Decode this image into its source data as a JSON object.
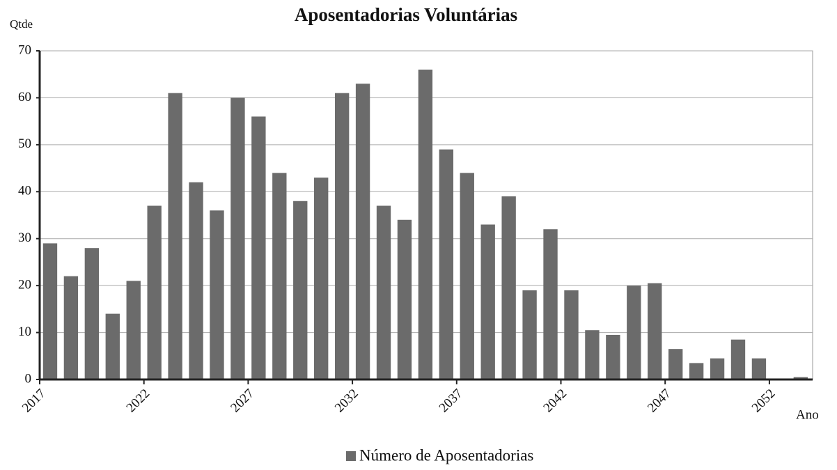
{
  "chart_data": {
    "type": "bar",
    "title": "Aposentadorias Voluntárias",
    "y_label": "Qtde",
    "x_label": "Ano",
    "categories": [
      "2017",
      null,
      null,
      null,
      null,
      "2022",
      null,
      null,
      null,
      null,
      "2027",
      null,
      null,
      null,
      null,
      "2032",
      null,
      null,
      null,
      null,
      "2037",
      null,
      null,
      null,
      null,
      "2042",
      null,
      null,
      null,
      null,
      "2047",
      null,
      null,
      null,
      null,
      "2052",
      null
    ],
    "series": [
      {
        "name": "Número de Aposentadorias",
        "color": "#6b6b6b",
        "values": [
          29,
          22,
          28,
          14,
          21,
          37,
          61,
          42,
          36,
          60,
          56,
          44,
          38,
          43,
          61,
          63,
          37,
          34,
          66,
          49,
          44,
          33,
          39,
          19,
          32,
          19,
          10.5,
          9.5,
          20,
          20.5,
          6.5,
          3.5,
          4.5,
          8.5,
          4.5,
          0,
          0.5
        ]
      }
    ],
    "ylim": [
      0,
      70
    ],
    "yticks": [
      0,
      10,
      20,
      30,
      40,
      50,
      60,
      70
    ],
    "grid": true,
    "legend": "bottom"
  }
}
